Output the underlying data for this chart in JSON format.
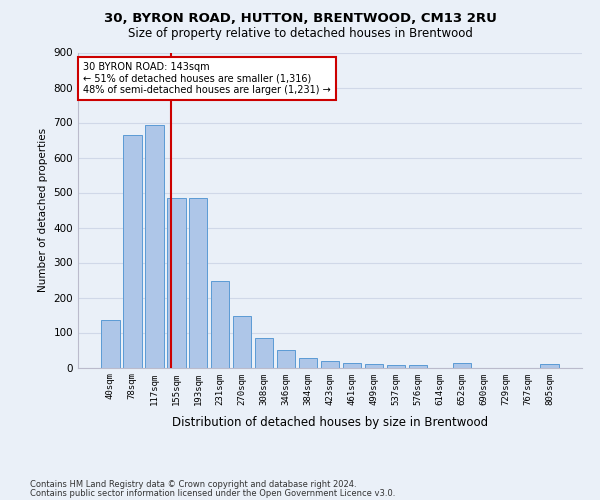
{
  "title": "30, BYRON ROAD, HUTTON, BRENTWOOD, CM13 2RU",
  "subtitle": "Size of property relative to detached houses in Brentwood",
  "xlabel": "Distribution of detached houses by size in Brentwood",
  "ylabel": "Number of detached properties",
  "categories": [
    "40sqm",
    "78sqm",
    "117sqm",
    "155sqm",
    "193sqm",
    "231sqm",
    "270sqm",
    "308sqm",
    "346sqm",
    "384sqm",
    "423sqm",
    "461sqm",
    "499sqm",
    "537sqm",
    "576sqm",
    "614sqm",
    "652sqm",
    "690sqm",
    "729sqm",
    "767sqm",
    "805sqm"
  ],
  "values": [
    137,
    665,
    693,
    483,
    483,
    247,
    147,
    83,
    50,
    27,
    20,
    13,
    10,
    8,
    8,
    0,
    13,
    0,
    0,
    0,
    10
  ],
  "bar_color": "#aec6e8",
  "bar_edge_color": "#5b9bd5",
  "grid_color": "#d0d8e8",
  "bg_color": "#eaf0f8",
  "property_line_x": 2.75,
  "annotation_line1": "30 BYRON ROAD: 143sqm",
  "annotation_line2": "← 51% of detached houses are smaller (1,316)",
  "annotation_line3": "48% of semi-detached houses are larger (1,231) →",
  "vline_color": "#cc0000",
  "annotation_box_color": "#ffffff",
  "annotation_box_edge": "#cc0000",
  "footnote1": "Contains HM Land Registry data © Crown copyright and database right 2024.",
  "footnote2": "Contains public sector information licensed under the Open Government Licence v3.0.",
  "ylim": [
    0,
    900
  ],
  "yticks": [
    0,
    100,
    200,
    300,
    400,
    500,
    600,
    700,
    800,
    900
  ]
}
